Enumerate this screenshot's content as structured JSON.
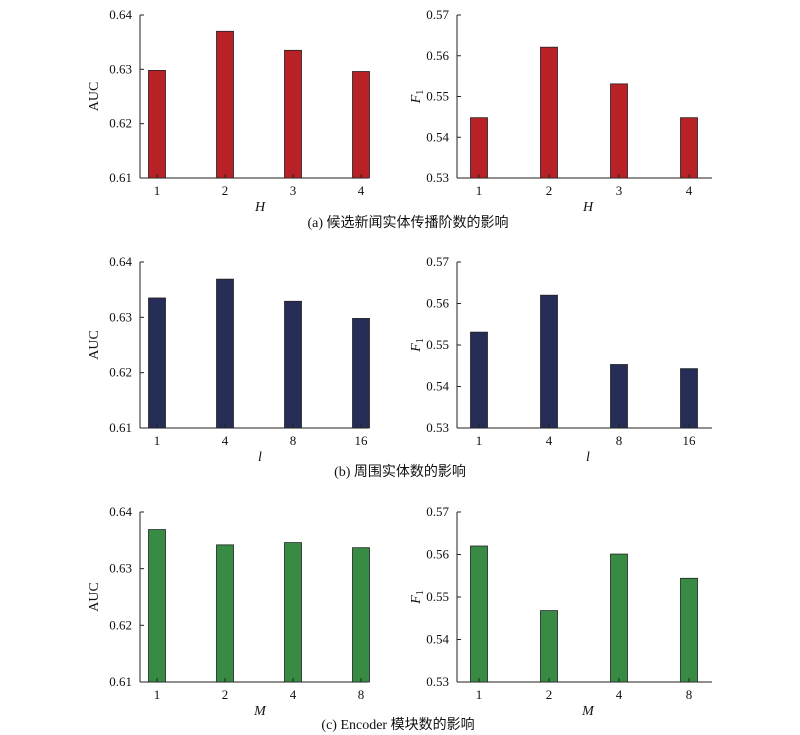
{
  "captions": [
    "(a) 候选新闻实体传播阶数的影响",
    "(b) 周围实体数的影响",
    "(c) Encoder 模块数的影响"
  ],
  "chart_data": [
    {
      "type": "bar",
      "row": 0,
      "col": 0,
      "categories": [
        "1",
        "2",
        "3",
        "4"
      ],
      "values": [
        0.6298,
        0.637,
        0.6335,
        0.6296
      ],
      "xlabel": "H",
      "ylabel": "AUC",
      "ylim": [
        0.61,
        0.64
      ],
      "yticks": [
        0.61,
        0.62,
        0.63,
        0.64
      ],
      "ytick_labels": [
        "0.61",
        "0.62",
        "0.63",
        "0.64"
      ],
      "color": "#b82227",
      "grid": false
    },
    {
      "type": "bar",
      "row": 0,
      "col": 1,
      "categories": [
        "1",
        "2",
        "3",
        "4"
      ],
      "values": [
        0.5448,
        0.5621,
        0.5531,
        0.5448
      ],
      "xlabel": "H",
      "ylabel": "F1",
      "ylim": [
        0.53,
        0.57
      ],
      "yticks": [
        0.53,
        0.54,
        0.55,
        0.56,
        0.57
      ],
      "ytick_labels": [
        "0.53",
        "0.54",
        "0.55",
        "0.56",
        "0.57"
      ],
      "color": "#b82227",
      "grid": false
    },
    {
      "type": "bar",
      "row": 1,
      "col": 0,
      "categories": [
        "1",
        "4",
        "8",
        "16"
      ],
      "values": [
        0.6335,
        0.6369,
        0.6329,
        0.6298
      ],
      "xlabel": "l",
      "ylabel": "AUC",
      "ylim": [
        0.61,
        0.64
      ],
      "yticks": [
        0.61,
        0.62,
        0.63,
        0.64
      ],
      "ytick_labels": [
        "0.61",
        "0.62",
        "0.63",
        "0.64"
      ],
      "color": "#262d56",
      "grid": false
    },
    {
      "type": "bar",
      "row": 1,
      "col": 1,
      "categories": [
        "1",
        "4",
        "8",
        "16"
      ],
      "values": [
        0.5531,
        0.562,
        0.5453,
        0.5443
      ],
      "xlabel": "l",
      "ylabel": "F1",
      "ylim": [
        0.53,
        0.57
      ],
      "yticks": [
        0.53,
        0.54,
        0.55,
        0.56,
        0.57
      ],
      "ytick_labels": [
        "0.53",
        "0.54",
        "0.55",
        "0.56",
        "0.57"
      ],
      "color": "#262d56",
      "grid": false
    },
    {
      "type": "bar",
      "row": 2,
      "col": 0,
      "categories": [
        "1",
        "2",
        "4",
        "8"
      ],
      "values": [
        0.6369,
        0.6342,
        0.6346,
        0.6337
      ],
      "xlabel": "M",
      "ylabel": "AUC",
      "ylim": [
        0.61,
        0.64
      ],
      "yticks": [
        0.61,
        0.62,
        0.63,
        0.64
      ],
      "ytick_labels": [
        "0.61",
        "0.62",
        "0.63",
        "0.64"
      ],
      "color": "#378b43",
      "grid": false
    },
    {
      "type": "bar",
      "row": 2,
      "col": 1,
      "categories": [
        "1",
        "2",
        "4",
        "8"
      ],
      "values": [
        0.562,
        0.5468,
        0.5601,
        0.5544
      ],
      "xlabel": "M",
      "ylabel": "F1",
      "ylim": [
        0.53,
        0.57
      ],
      "yticks": [
        0.53,
        0.54,
        0.55,
        0.56,
        0.57
      ],
      "ytick_labels": [
        "0.53",
        "0.54",
        "0.55",
        "0.56",
        "0.57"
      ],
      "color": "#378b43",
      "grid": false
    }
  ]
}
